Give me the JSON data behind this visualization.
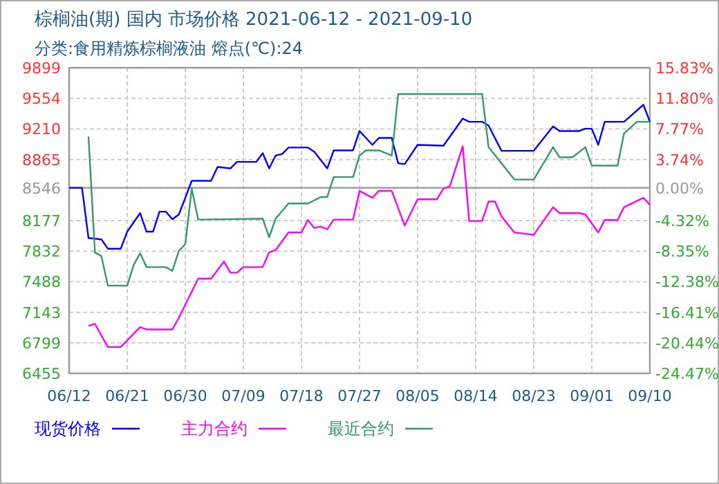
{
  "chart_data": {
    "type": "line",
    "title": "棕榈油(期) 国内 市场价格 2021-06-12 - 2021-09-10",
    "subtitle": "分类:食用精炼棕榈液油 熔点(℃):24",
    "xlim": [
      "--06-12",
      "--09-10"
    ],
    "xticks": [
      {
        "value": "--06-12",
        "label": "06/12"
      },
      {
        "value": "--06-21",
        "label": "06/21"
      },
      {
        "value": "--06-30",
        "label": "06/30"
      },
      {
        "value": "--07-09",
        "label": "07/09"
      },
      {
        "value": "--07-18",
        "label": "07/18"
      },
      {
        "value": "--07-27",
        "label": "07/27"
      },
      {
        "value": "--08-05",
        "label": "08/05"
      },
      {
        "value": "--08-14",
        "label": "08/14"
      },
      {
        "value": "--08-23",
        "label": "08/23"
      },
      {
        "value": "--09-01",
        "label": "09/01"
      },
      {
        "value": "--09-10",
        "label": "09/10"
      }
    ],
    "ylim": [
      6455,
      9899
    ],
    "yticks": [
      9899,
      9554,
      9210,
      8865,
      8546,
      8177,
      7832,
      7488,
      7143,
      6799,
      6455
    ],
    "y2lim": [
      -24.47,
      15.83
    ],
    "y2ticks": [
      {
        "value": 15.83,
        "label": "15.83%"
      },
      {
        "value": 11.8,
        "label": "11.80%"
      },
      {
        "value": 7.77,
        "label": "7.77%"
      },
      {
        "value": 3.74,
        "label": "3.74%"
      },
      {
        "value": 0,
        "label": "0.00%"
      },
      {
        "value": -4.32,
        "label": "-4.32%"
      },
      {
        "value": -8.35,
        "label": "-8.35%"
      },
      {
        "value": -12.38,
        "label": "-12.38%"
      },
      {
        "value": -16.41,
        "label": "-16.41%"
      },
      {
        "value": -20.44,
        "label": "-20.44%"
      },
      {
        "value": -24.47,
        "label": "-24.47%"
      }
    ],
    "ref_lines": [
      {
        "axis": "y",
        "value": 8546,
        "color": "#999999"
      }
    ],
    "grid": true,
    "legend": "bottom",
    "line_style": "solid",
    "series": [
      {
        "name": "现货价格",
        "color": "#0000ff",
        "x": [
          "--06-12",
          "--06-14",
          "--06-15",
          "--06-17",
          "--06-18",
          "--06-20",
          "--06-21",
          "--06-23",
          "--06-24",
          "--06-25",
          "--06-26",
          "--06-27",
          "--06-28",
          "--06-29",
          "--06-30",
          "--07-01",
          "--07-04",
          "--07-05",
          "--07-07",
          "--07-08",
          "--07-11",
          "--07-12",
          "--07-13",
          "--07-14",
          "--07-15",
          "--07-16",
          "--07-19",
          "--07-20",
          "--07-22",
          "--07-23",
          "--07-26",
          "--07-27",
          "--07-29",
          "--07-30",
          "--08-01",
          "--08-02",
          "--08-03",
          "--08-05",
          "--08-09",
          "--08-12",
          "--08-13",
          "--08-15",
          "--08-16",
          "--08-18",
          "--08-23",
          "--08-26",
          "--08-27",
          "--08-30",
          "--08-31",
          "--09-01",
          "--09-02",
          "--09-03",
          "--09-06",
          "--09-09",
          "--09-10"
        ],
        "values": [
          8546,
          8546,
          7980,
          7965,
          7860,
          7860,
          8052,
          8261,
          8052,
          8052,
          8277,
          8277,
          8192,
          8245,
          8433,
          8625,
          8625,
          8781,
          8765,
          8838,
          8838,
          8937,
          8765,
          8910,
          8926,
          9000,
          9000,
          8952,
          8765,
          8968,
          8968,
          9186,
          9030,
          9108,
          9108,
          8823,
          8813,
          9030,
          9020,
          9326,
          9290,
          9290,
          9248,
          8963,
          8963,
          9238,
          9186,
          9186,
          9212,
          9212,
          9030,
          9290,
          9290,
          9482,
          9290
        ]
      },
      {
        "name": "主力合约",
        "color": "#ff00ff",
        "x": [
          "--06-15",
          "--06-16",
          "--06-18",
          "--06-20",
          "--06-23",
          "--06-24",
          "--06-28",
          "--06-29",
          "--07-02",
          "--07-04",
          "--07-06",
          "--07-07",
          "--07-08",
          "--07-09",
          "--07-12",
          "--07-13",
          "--07-14",
          "--07-16",
          "--07-18",
          "--07-19",
          "--07-20",
          "--07-21",
          "--07-22",
          "--07-23",
          "--07-26",
          "--07-27",
          "--07-29",
          "--07-30",
          "--08-01",
          "--08-03",
          "--08-05",
          "--08-08",
          "--08-09",
          "--08-10",
          "--08-12",
          "--08-13",
          "--08-15",
          "--08-16",
          "--08-17",
          "--08-18",
          "--08-20",
          "--08-23",
          "--08-26",
          "--08-27",
          "--08-30",
          "--08-31",
          "--09-02",
          "--09-03",
          "--09-05",
          "--09-06",
          "--09-09",
          "--09-10"
        ],
        "values": [
          6991,
          7012,
          6752,
          6752,
          6976,
          6950,
          6950,
          7080,
          7522,
          7522,
          7715,
          7590,
          7590,
          7652,
          7652,
          7818,
          7844,
          8043,
          8043,
          8183,
          8094,
          8110,
          8078,
          8188,
          8188,
          8511,
          8433,
          8511,
          8511,
          8121,
          8417,
          8417,
          8537,
          8563,
          9014,
          8172,
          8172,
          8391,
          8391,
          8224,
          8043,
          8017,
          8328,
          8261,
          8261,
          8245,
          8043,
          8183,
          8183,
          8328,
          8433,
          8355
        ]
      },
      {
        "name": "最近合约",
        "color": "#339966",
        "x": [
          "--06-15",
          "--06-16",
          "--06-17",
          "--06-18",
          "--06-21",
          "--06-22",
          "--06-23",
          "--06-24",
          "--06-27",
          "--06-28",
          "--06-29",
          "--06-30",
          "--07-01",
          "--07-02",
          "--07-12",
          "--07-13",
          "--07-14",
          "--07-16",
          "--07-19",
          "--07-21",
          "--07-22",
          "--07-23",
          "--07-26",
          "--07-27",
          "--07-28",
          "--07-30",
          "--08-01",
          "--08-02",
          "--08-15",
          "--08-16",
          "--08-18",
          "--08-20",
          "--08-23",
          "--08-26",
          "--08-27",
          "--08-29",
          "--08-31",
          "--09-01",
          "--09-05",
          "--09-06",
          "--09-08",
          "--09-10"
        ],
        "values": [
          9124,
          7818,
          7777,
          7444,
          7444,
          7677,
          7808,
          7652,
          7652,
          7610,
          7834,
          7912,
          8537,
          8188,
          8198,
          7990,
          8198,
          8370,
          8370,
          8442,
          8442,
          8667,
          8667,
          8910,
          8968,
          8968,
          8910,
          9603,
          9603,
          9004,
          8823,
          8640,
          8640,
          9004,
          8890,
          8890,
          9004,
          8796,
          8796,
          9160,
          9290,
          9290
        ]
      }
    ]
  }
}
